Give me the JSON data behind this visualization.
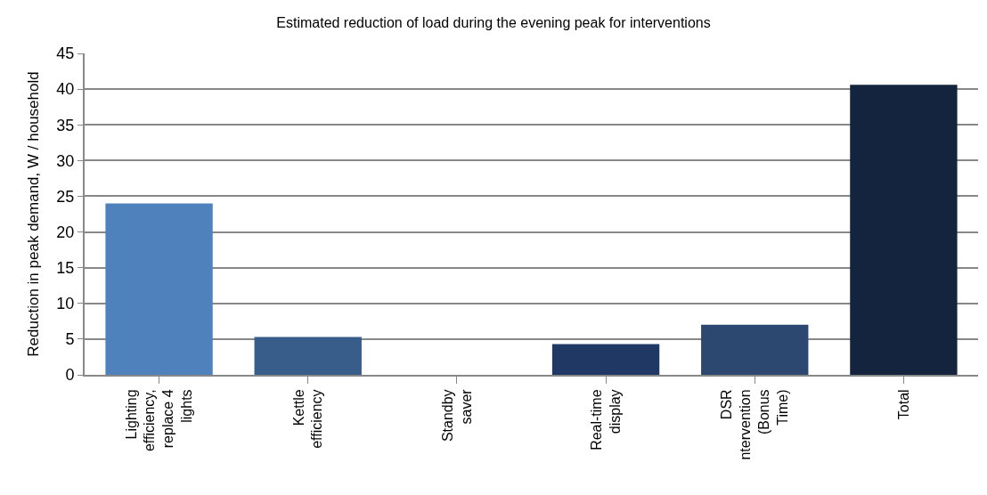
{
  "chart_data": {
    "type": "bar",
    "title": "Estimated reduction of load during the evening peak for interventions",
    "ylabel": "Reduction in peak demand, W / household",
    "categories": [
      "Lighting\nefficiency,\nreplace 4\nlights",
      "Kettle\nefficiency",
      "Standby\nsaver",
      "Real-time\ndisplay",
      "DSR\nntervention\n(Bonus\nTime)",
      "Total"
    ],
    "values": [
      24.0,
      5.3,
      0,
      4.3,
      7.0,
      40.6
    ],
    "colors": [
      "#4f81bd",
      "#385d8a",
      "#2a4a78",
      "#1f3864",
      "#2c4770",
      "#14243f"
    ],
    "ylim": [
      0,
      45
    ],
    "yticks": [
      0,
      5,
      10,
      15,
      20,
      25,
      30,
      35,
      40,
      45
    ],
    "grid": "y"
  }
}
